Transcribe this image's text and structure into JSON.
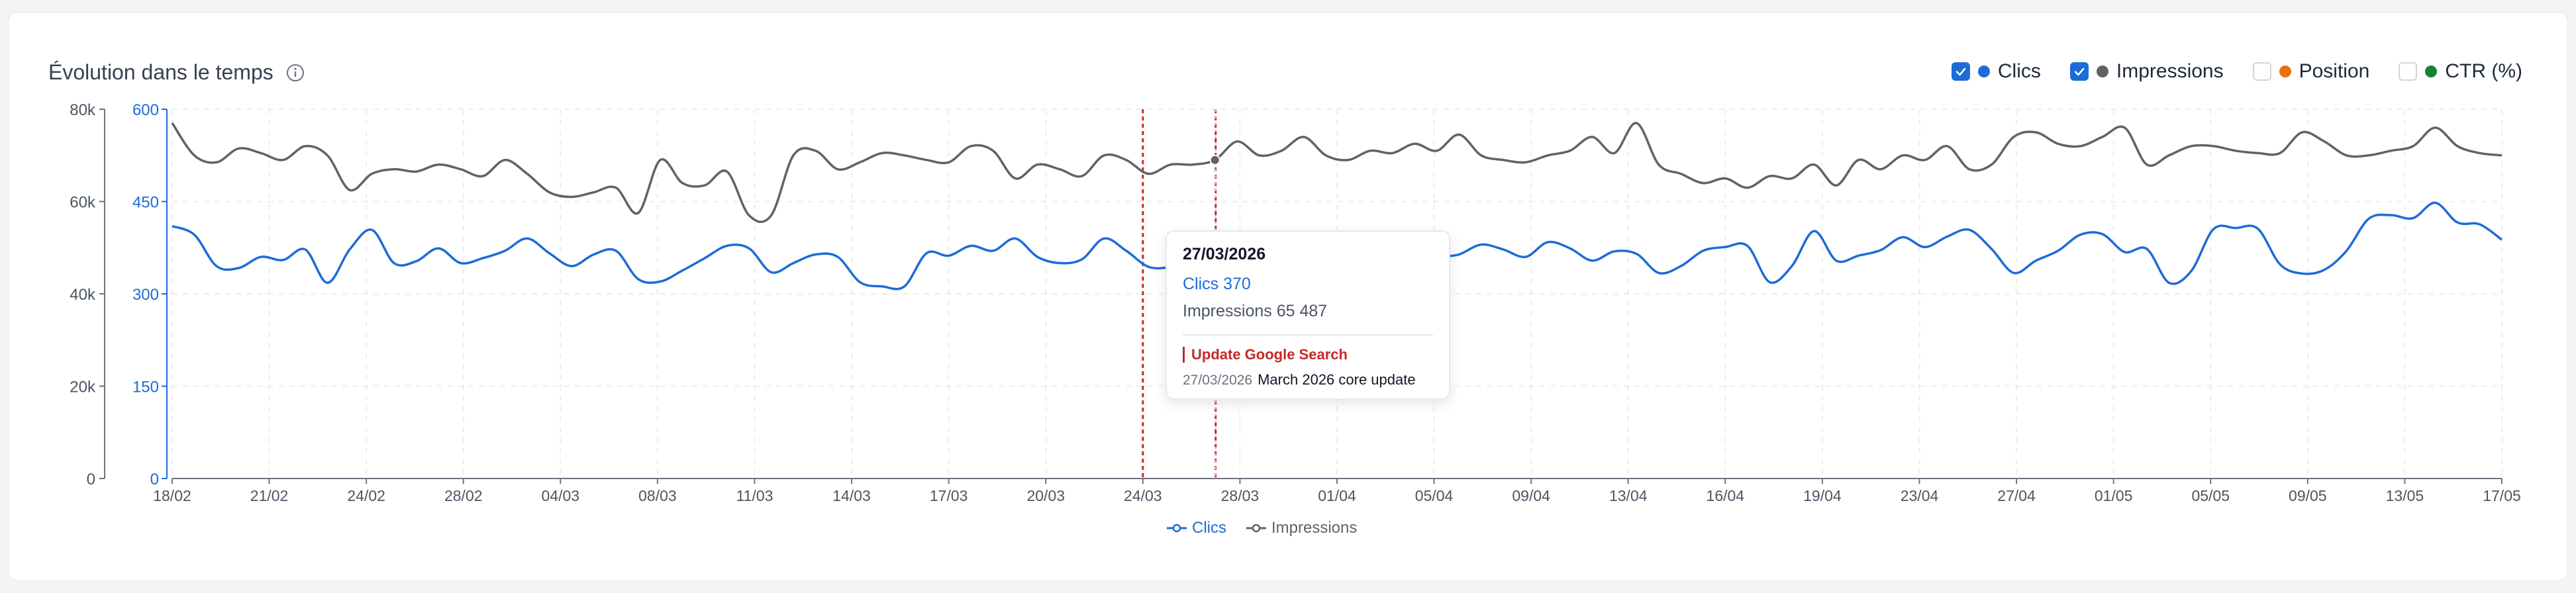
{
  "header": {
    "title": "Évolution dans le temps",
    "toggles": [
      {
        "label": "Clics",
        "checked": true,
        "color": "#1d6bd8"
      },
      {
        "label": "Impressions",
        "checked": true,
        "color": "#5f6368"
      },
      {
        "label": "Position",
        "checked": false,
        "color": "#e8710a"
      },
      {
        "label": "CTR (%)",
        "checked": false,
        "color": "#188038"
      }
    ]
  },
  "tooltip": {
    "date": "27/03/2026",
    "clics_label": "Clics",
    "clics_value": "370",
    "impressions_label": "Impressions",
    "impressions_value": "65 487",
    "update_title": "Update Google Search",
    "update_date": "27/03/2026",
    "update_name": "March 2026 core update"
  },
  "legend": [
    "Clics",
    "Impressions"
  ],
  "chart_data": {
    "type": "line",
    "x_ticks": [
      "18/02",
      "21/02",
      "24/02",
      "28/02",
      "04/03",
      "08/03",
      "11/03",
      "14/03",
      "17/03",
      "20/03",
      "24/03",
      "28/03",
      "01/04",
      "05/04",
      "09/04",
      "13/04",
      "16/04",
      "19/04",
      "23/04",
      "27/04",
      "01/05",
      "05/05",
      "09/05",
      "13/05",
      "17/05"
    ],
    "left_axis": {
      "ticks": [
        "0",
        "20k",
        "40k",
        "60k",
        "80k"
      ],
      "range": [
        0,
        80000
      ],
      "series": "Impressions"
    },
    "right_axis": {
      "ticks": [
        "0",
        "150",
        "300",
        "450",
        "600"
      ],
      "range": [
        0,
        600
      ],
      "series": "Clics",
      "color": "#1d6bd8"
    },
    "annotations": [
      {
        "date": "24/03"
      },
      {
        "date": "27/03/2026"
      }
    ],
    "series": [
      {
        "name": "Clics",
        "axis": "right",
        "color": "#1d6bd8",
        "values": [
          410,
          396,
          345,
          342,
          360,
          355,
          372,
          318,
          372,
          404,
          350,
          353,
          374,
          350,
          358,
          370,
          390,
          366,
          345,
          364,
          370,
          324,
          320,
          338,
          358,
          378,
          374,
          335,
          350,
          364,
          360,
          319,
          312,
          312,
          366,
          362,
          378,
          370,
          390,
          360,
          350,
          356,
          390,
          370,
          344,
          344,
          357,
          366,
          350,
          340,
          376,
          370,
          380,
          357,
          382,
          378,
          330,
          357,
          364,
          380,
          372,
          360,
          384,
          374,
          354,
          369,
          365,
          334,
          345,
          370,
          376,
          378,
          319,
          345,
          402,
          354,
          362,
          371,
          392,
          376,
          393,
          404,
          373,
          334,
          354,
          370,
          396,
          397,
          368,
          373,
          318,
          337,
          405,
          407,
          406,
          348,
          333,
          339,
          370,
          422,
          428,
          423,
          448,
          416,
          413,
          388
        ]
      },
      {
        "name": "Impressions",
        "axis": "left",
        "color": "#5f6368",
        "values": [
          77000,
          70000,
          68500,
          71500,
          70500,
          69000,
          72000,
          70000,
          62500,
          66000,
          67000,
          66500,
          68000,
          67000,
          65500,
          69000,
          66000,
          62000,
          61000,
          62000,
          63000,
          57500,
          69000,
          64000,
          63500,
          66500,
          57000,
          57000,
          70000,
          71000,
          67000,
          68500,
          70500,
          70000,
          69000,
          68500,
          72000,
          71000,
          65000,
          68000,
          67000,
          65500,
          70000,
          69000,
          66000,
          68000,
          68000,
          69000,
          73000,
          70000,
          71000,
          74000,
          70000,
          69000,
          71000,
          70500,
          72500,
          71000,
          74500,
          70000,
          69000,
          68500,
          70000,
          71000,
          74000,
          70500,
          77000,
          68000,
          66000,
          64000,
          65000,
          63000,
          65500,
          65000,
          68000,
          63500,
          69000,
          67000,
          70000,
          69000,
          72000,
          67000,
          68000,
          74000,
          75000,
          72500,
          72000,
          74000,
          76000,
          68000,
          70000,
          72000,
          72000,
          71000,
          70500,
          70500,
          75000,
          73000,
          70000,
          70000,
          71000,
          72000,
          76000,
          72000,
          70500,
          70000
        ]
      }
    ]
  }
}
